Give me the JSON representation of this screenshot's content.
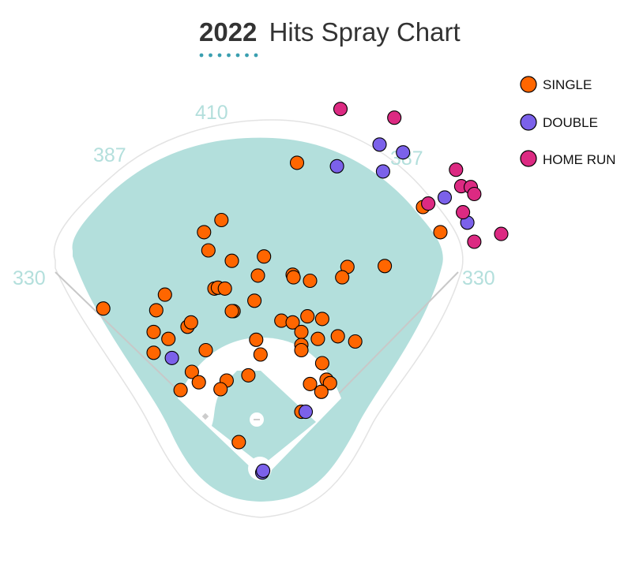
{
  "chart_data": {
    "type": "scatter",
    "title_year": "2022",
    "title_rest": "Hits Spray Chart",
    "coordinate_units": "feet from home plate (x: toward right field, y: toward center field)",
    "field_distances": [
      {
        "label": "330",
        "location": "left-field line"
      },
      {
        "label": "387",
        "location": "left-center"
      },
      {
        "label": "410",
        "location": "center"
      },
      {
        "label": "387",
        "location": "right-center"
      },
      {
        "label": "330",
        "location": "right-field line"
      }
    ],
    "legend_placement": "top-right",
    "colors": {
      "field": "#b3dfdc",
      "accent_dots": "#3a9fb0",
      "outline": "#e3e3e3"
    },
    "series": [
      {
        "name": "SINGLE",
        "color": "#ff6600",
        "points": [
          [
            40,
            356
          ],
          [
            -47,
            290
          ],
          [
            -67,
            276
          ],
          [
            -62,
            255
          ],
          [
            -35,
            243
          ],
          [
            2,
            248
          ],
          [
            -5,
            226
          ],
          [
            35,
            227
          ],
          [
            36,
            224
          ],
          [
            55,
            220
          ],
          [
            98,
            236
          ],
          [
            92,
            224
          ],
          [
            141,
            237
          ],
          [
            -55,
            211
          ],
          [
            -51,
            212
          ],
          [
            -43,
            211
          ],
          [
            -9,
            197
          ],
          [
            -33,
            185
          ],
          [
            -35,
            185
          ],
          [
            -112,
            204
          ],
          [
            -122,
            186
          ],
          [
            -183,
            188
          ],
          [
            -125,
            161
          ],
          [
            -108,
            153
          ],
          [
            -86,
            167
          ],
          [
            -82,
            172
          ],
          [
            -125,
            137
          ],
          [
            -65,
            140
          ],
          [
            -81,
            115
          ],
          [
            -73,
            103
          ],
          [
            -94,
            94
          ],
          [
            -41,
            105
          ],
          [
            -48,
            95
          ],
          [
            -16,
            111
          ],
          [
            -7,
            152
          ],
          [
            -2,
            135
          ],
          [
            22,
            174
          ],
          [
            35,
            172
          ],
          [
            52,
            179
          ],
          [
            69,
            176
          ],
          [
            45,
            161
          ],
          [
            45,
            146
          ],
          [
            45,
            140
          ],
          [
            64,
            153
          ],
          [
            87,
            156
          ],
          [
            107,
            150
          ],
          [
            69,
            125
          ],
          [
            55,
            101
          ],
          [
            74,
            106
          ],
          [
            78,
            102
          ],
          [
            68,
            92
          ],
          [
            45,
            69
          ],
          [
            -27,
            34
          ],
          [
            185,
            305
          ],
          [
            205,
            276
          ]
        ]
      },
      {
        "name": "DOUBLE",
        "color": "#7b61ea",
        "points": [
          [
            86,
            352
          ],
          [
            135,
            377
          ],
          [
            162,
            368
          ],
          [
            139,
            346
          ],
          [
            210,
            316
          ],
          [
            236,
            287
          ],
          [
            -104,
            131
          ],
          [
            50,
            69
          ],
          [
            0,
            -1
          ],
          [
            1,
            1
          ]
        ]
      },
      {
        "name": "HOME RUN",
        "color": "#dc2a82",
        "points": [
          [
            90,
            418
          ],
          [
            152,
            408
          ],
          [
            223,
            348
          ],
          [
            229,
            329
          ],
          [
            240,
            328
          ],
          [
            244,
            320
          ],
          [
            191,
            309
          ],
          [
            231,
            299
          ],
          [
            244,
            265
          ],
          [
            275,
            274
          ]
        ]
      }
    ]
  }
}
